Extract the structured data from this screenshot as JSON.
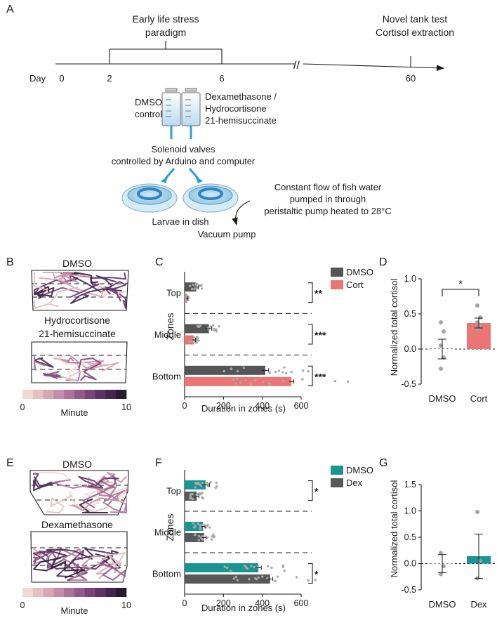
{
  "panels": [
    "A",
    "B",
    "C",
    "D",
    "E",
    "F",
    "G"
  ],
  "timeline": {
    "day_label": "Day",
    "ticks": [
      "0",
      "2",
      "6",
      "60"
    ],
    "stress_label_1": "Early life stress",
    "stress_label_2": "paradigm",
    "test_label_1": "Novel tank test",
    "test_label_2": "Cortisol extraction",
    "break_mark": "//"
  },
  "setup": {
    "left_syringe_1": "DMSO",
    "left_syringe_2": "control",
    "right_syringe_1": "Dexamethasone /",
    "right_syringe_2": "Hydrocortisone",
    "right_syringe_3": "21-hemisuccinate",
    "valves_1": "Solenoid valves",
    "valves_2": "controlled by Arduino and computer",
    "flow_1": "Constant flow of fish water",
    "flow_2": "pumped in through",
    "flow_3": "peristaltic pump heated to 28°C",
    "dish_label": "Larvae in dish",
    "vacuum_label": "Vacuum pump"
  },
  "tracks_top": {
    "title_1": "DMSO",
    "title_2a": "Hydrocortisone",
    "title_2b": "21-hemisuccinate",
    "legend_min": "0",
    "legend_max": "10",
    "legend_title": "Minute"
  },
  "tracks_bottom": {
    "title_1": "DMSO",
    "title_2": "Dexamethasone",
    "legend_min": "0",
    "legend_max": "10",
    "legend_title": "Minute"
  },
  "minute_colors": [
    "#f2d9d6",
    "#e6bfbf",
    "#d7a6b3",
    "#c48ca8",
    "#ad719a",
    "#93598b",
    "#7a4479",
    "#5f3265",
    "#45244f",
    "#2a1a30"
  ],
  "chart_data": [
    {
      "panel": "C",
      "type": "bar",
      "orientation": "horizontal",
      "categories": [
        "Top",
        "Middle",
        "Bottom"
      ],
      "ylabel": "Zones",
      "xlabel": "Duration in zones (s)",
      "xlim": [
        0,
        600
      ],
      "xticks": [
        "0",
        "200",
        "400",
        "600"
      ],
      "series": [
        {
          "name": "DMSO",
          "color": "#555555",
          "values": [
            60,
            125,
            415
          ],
          "errors": [
            12,
            15,
            18
          ]
        },
        {
          "name": "Cort",
          "color": "#eb7474",
          "values": [
            12,
            48,
            550
          ],
          "errors": [
            5,
            8,
            12
          ]
        }
      ],
      "significance": [
        "**",
        "***",
        "***"
      ],
      "legend_position": "top-right"
    },
    {
      "panel": "D",
      "type": "bar",
      "categories": [
        "DMSO",
        "Cort"
      ],
      "values": [
        0.0,
        0.37
      ],
      "errors": [
        0.14,
        0.07
      ],
      "colors": [
        "#ffffff",
        "#eb7474"
      ],
      "ylabel": "Normalized total cortisol",
      "ylim": [
        -0.5,
        1.0
      ],
      "yticks": [
        "1.0",
        "0.5",
        "0.0",
        "-0.5"
      ],
      "significance": "*",
      "points": [
        [
          0.38,
          0.25,
          0.05,
          -0.12,
          -0.28
        ],
        [
          0.62,
          0.45,
          0.38,
          0.33,
          0.28
        ]
      ]
    },
    {
      "panel": "F",
      "type": "bar",
      "orientation": "horizontal",
      "categories": [
        "Top",
        "Middle",
        "Bottom"
      ],
      "ylabel": "Zones",
      "xlabel": "Duration in zones (s)",
      "xlim": [
        0,
        600
      ],
      "xticks": [
        "0",
        "200",
        "400",
        "600"
      ],
      "series": [
        {
          "name": "DMSO",
          "color": "#199593",
          "values": [
            108,
            95,
            380
          ],
          "errors": [
            20,
            10,
            15
          ]
        },
        {
          "name": "Dex",
          "color": "#595959",
          "values": [
            62,
            100,
            440
          ],
          "errors": [
            12,
            10,
            14
          ]
        }
      ],
      "significance": [
        "*",
        "",
        "*"
      ],
      "legend_position": "top-right"
    },
    {
      "panel": "G",
      "type": "bar",
      "categories": [
        "DMSO",
        "Dex"
      ],
      "values": [
        0.0,
        0.14
      ],
      "errors": [
        0.17,
        0.42
      ],
      "colors": [
        "#ffffff",
        "#199593"
      ],
      "ylabel": "Normalized total cortisol",
      "ylim": [
        -0.5,
        1.5
      ],
      "yticks": [
        "1.5",
        "1.0",
        "0.5",
        "0.0",
        "-0.5"
      ],
      "points": [
        [
          0.2,
          -0.05,
          -0.2
        ],
        [
          0.98,
          0.05,
          -0.28
        ]
      ]
    }
  ]
}
